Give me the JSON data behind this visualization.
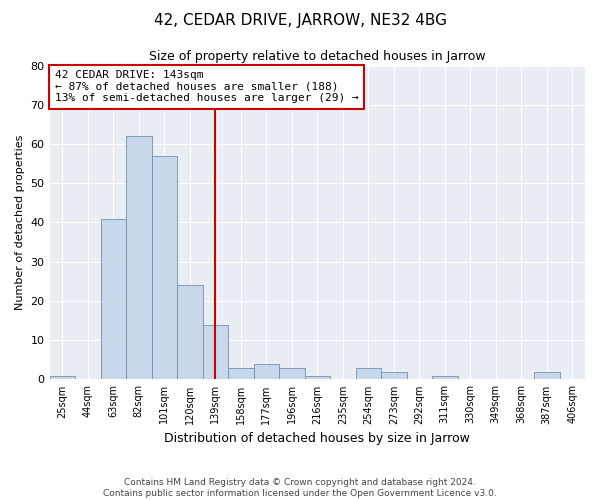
{
  "title": "42, CEDAR DRIVE, JARROW, NE32 4BG",
  "subtitle": "Size of property relative to detached houses in Jarrow",
  "xlabel": "Distribution of detached houses by size in Jarrow",
  "ylabel": "Number of detached properties",
  "bin_labels": [
    "25sqm",
    "44sqm",
    "63sqm",
    "82sqm",
    "101sqm",
    "120sqm",
    "139sqm",
    "158sqm",
    "177sqm",
    "196sqm",
    "216sqm",
    "235sqm",
    "254sqm",
    "273sqm",
    "292sqm",
    "311sqm",
    "330sqm",
    "349sqm",
    "368sqm",
    "387sqm",
    "406sqm"
  ],
  "bar_values": [
    1,
    0,
    41,
    62,
    57,
    24,
    14,
    3,
    4,
    3,
    1,
    0,
    3,
    2,
    0,
    1,
    0,
    0,
    0,
    2,
    0
  ],
  "bar_color": "#c8d8ea",
  "bar_edge_color": "#7090b0",
  "vline_x_idx": 6,
  "vline_color": "#cc0000",
  "annotation_title": "42 CEDAR DRIVE: 143sqm",
  "annotation_line1": "← 87% of detached houses are smaller (188)",
  "annotation_line2": "13% of semi-detached houses are larger (29) →",
  "annotation_box_facecolor": "#ffffff",
  "annotation_box_edgecolor": "#cc0000",
  "ylim": [
    0,
    80
  ],
  "yticks": [
    0,
    10,
    20,
    30,
    40,
    50,
    60,
    70,
    80
  ],
  "footer1": "Contains HM Land Registry data © Crown copyright and database right 2024.",
  "footer2": "Contains public sector information licensed under the Open Government Licence v3.0.",
  "bg_color": "#ffffff",
  "plot_bg_color": "#e8eef4",
  "grid_color": "#ffffff",
  "title_fontsize": 11,
  "subtitle_fontsize": 9,
  "ylabel_fontsize": 8,
  "xlabel_fontsize": 9,
  "tick_fontsize": 7,
  "footer_fontsize": 6.5
}
